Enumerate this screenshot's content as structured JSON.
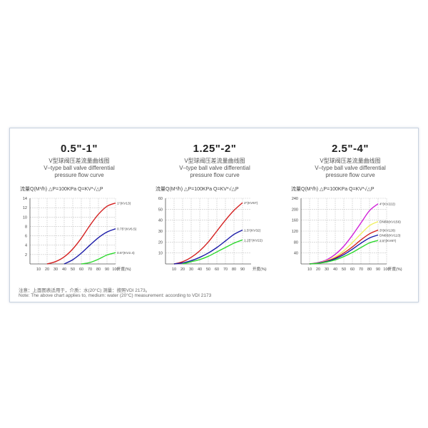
{
  "note_cn": "注意：上面图表适用于，介质：水(20°C) 测量：按照VDI 2173。",
  "note_en": "Note: The above chart applies to, medium: water (20°C) measurement: according to VDI 2173",
  "colors": {
    "red": "#d42020",
    "blue": "#1a1aa8",
    "green": "#2ed82e",
    "magenta": "#d020d8",
    "yellow": "#f0f060",
    "grid": "#c8c8c8",
    "axis": "#555555"
  },
  "chart_data": [
    {
      "type": "line",
      "title": "0.5\"-1\"",
      "subtitle_cn": "V型球阀压差流量曲线图",
      "subtitle_en_1": "V–type ball valve differential",
      "subtitle_en_2": "pressure flow curve",
      "formula": "流量Q(M³/h)  △P=100KPa  Q=KV*√△P",
      "x_ticks": [
        "10",
        "20",
        "30",
        "40",
        "50",
        "60",
        "70",
        "80",
        "90",
        "100"
      ],
      "xlabel": "开度(%)",
      "y_ticks": [
        "2",
        "4",
        "6",
        "8",
        "10",
        "12",
        "14"
      ],
      "xlim": [
        0,
        100
      ],
      "ylim": [
        0,
        14
      ],
      "series": [
        {
          "name": "1\"(KV13)",
          "color": "#d42020",
          "x": [
            20,
            30,
            40,
            50,
            60,
            70,
            80,
            90,
            100
          ],
          "y": [
            0,
            0.5,
            1.5,
            3.2,
            5.5,
            8.2,
            10.6,
            12.3,
            13
          ]
        },
        {
          "name": "0.75\"(KV6.5)",
          "color": "#1a1aa8",
          "x": [
            40,
            50,
            60,
            70,
            80,
            90,
            100
          ],
          "y": [
            0,
            0.9,
            2.3,
            4.0,
            5.6,
            6.8,
            7.5
          ]
        },
        {
          "name": "0.5\"(KV2.4)",
          "color": "#2ed82e",
          "x": [
            60,
            70,
            80,
            90,
            100
          ],
          "y": [
            0,
            0.3,
            1.0,
            1.9,
            2.4
          ]
        }
      ]
    },
    {
      "type": "line",
      "title": "1.25\"-2\"",
      "subtitle_cn": "V型球阀压差流量曲线图",
      "subtitle_en_1": "V–type ball valve differential",
      "subtitle_en_2": "pressure flow curve",
      "formula": "流量Q(M³/h)  △P=100KPa  Q=KV*√△P",
      "x_ticks": [
        "10",
        "20",
        "30",
        "40",
        "50",
        "60",
        "70",
        "80",
        "90"
      ],
      "xlabel": "开度(%)",
      "y_ticks": [
        "10",
        "20",
        "30",
        "40",
        "50",
        "60"
      ],
      "xlim": [
        0,
        100
      ],
      "ylim": [
        0,
        60
      ],
      "series": [
        {
          "name": "2\"(KV57)",
          "color": "#d42020",
          "x": [
            10,
            20,
            30,
            40,
            50,
            60,
            70,
            80,
            90
          ],
          "y": [
            0,
            2,
            6,
            12,
            20,
            30,
            40,
            49,
            56
          ]
        },
        {
          "name": "1.5\"(KV32)",
          "color": "#1a1aa8",
          "x": [
            10,
            20,
            30,
            40,
            50,
            60,
            70,
            80,
            90
          ],
          "y": [
            0,
            1,
            3,
            6,
            10,
            15,
            21,
            27,
            31
          ]
        },
        {
          "name": "1.25\"(KV22)",
          "color": "#2ed82e",
          "x": [
            20,
            30,
            40,
            50,
            60,
            70,
            80,
            90
          ],
          "y": [
            0,
            2,
            4,
            7,
            11,
            15,
            19,
            22
          ]
        }
      ]
    },
    {
      "type": "line",
      "title": "2.5\"-4\"",
      "subtitle_cn": "V型球阀压差流量曲线图",
      "subtitle_en_1": "V–type ball valve differential",
      "subtitle_en_2": "pressure flow curve",
      "formula": "流量Q(M³/h)  △P=100KPa  Q=KV*√△P",
      "x_ticks": [
        "10",
        "20",
        "30",
        "40",
        "50",
        "60",
        "70",
        "80",
        "90",
        "100"
      ],
      "xlabel": "开度(%)",
      "y_ticks": [
        "40",
        "80",
        "120",
        "160",
        "200",
        "240"
      ],
      "xlim": [
        0,
        100
      ],
      "ylim": [
        0,
        240
      ],
      "series": [
        {
          "name": "4\"(KV222)",
          "color": "#d020d8",
          "x": [
            10,
            20,
            30,
            40,
            50,
            60,
            70,
            80,
            90
          ],
          "y": [
            0,
            5,
            15,
            35,
            65,
            105,
            150,
            195,
            220
          ]
        },
        {
          "name": "DN80(KV156)",
          "color": "#f0f060",
          "x": [
            10,
            20,
            30,
            40,
            50,
            60,
            70,
            80,
            90
          ],
          "y": [
            0,
            4,
            12,
            26,
            48,
            78,
            110,
            140,
            155
          ]
        },
        {
          "name": "3\"(KV126)",
          "color": "#d42020",
          "x": [
            10,
            20,
            30,
            40,
            50,
            60,
            70,
            80,
            90
          ],
          "y": [
            0,
            3,
            10,
            22,
            40,
            62,
            88,
            110,
            124
          ]
        },
        {
          "name": "DN65(KV113)",
          "color": "#1a1aa8",
          "x": [
            10,
            20,
            30,
            40,
            50,
            60,
            70,
            80,
            90
          ],
          "y": [
            0,
            3,
            9,
            19,
            34,
            54,
            76,
            95,
            106
          ]
        },
        {
          "name": "2.5\"(KV87)",
          "color": "#2ed82e",
          "x": [
            10,
            20,
            30,
            40,
            50,
            60,
            70,
            80,
            90
          ],
          "y": [
            0,
            2,
            7,
            15,
            27,
            42,
            60,
            77,
            86
          ]
        }
      ]
    }
  ]
}
